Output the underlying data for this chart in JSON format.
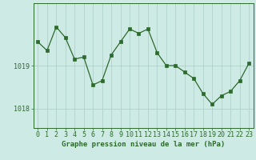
{
  "x": [
    0,
    1,
    2,
    3,
    4,
    5,
    6,
    7,
    8,
    9,
    10,
    11,
    12,
    13,
    14,
    15,
    16,
    17,
    18,
    19,
    20,
    21,
    22,
    23
  ],
  "y": [
    1019.55,
    1019.35,
    1019.9,
    1019.65,
    1019.15,
    1019.2,
    1018.55,
    1018.65,
    1019.25,
    1019.55,
    1019.85,
    1019.75,
    1019.85,
    1019.3,
    1019.0,
    1019.0,
    1018.85,
    1018.7,
    1018.35,
    1018.1,
    1018.3,
    1018.4,
    1018.65,
    1019.05
  ],
  "line_color": "#2d6a2d",
  "marker_color": "#2d6a2d",
  "bg_color": "#ceeae4",
  "grid_color": "#a8ccC4",
  "axis_color": "#2d6a2d",
  "xlabel": "Graphe pression niveau de la mer (hPa)",
  "xlabel_fontsize": 6.5,
  "tick_fontsize": 6.0,
  "ytick_labels": [
    "1018",
    "1019"
  ],
  "ylim": [
    1017.55,
    1020.45
  ],
  "xlim": [
    -0.5,
    23.5
  ],
  "ylabel_ticks": [
    1018.0,
    1019.0
  ]
}
